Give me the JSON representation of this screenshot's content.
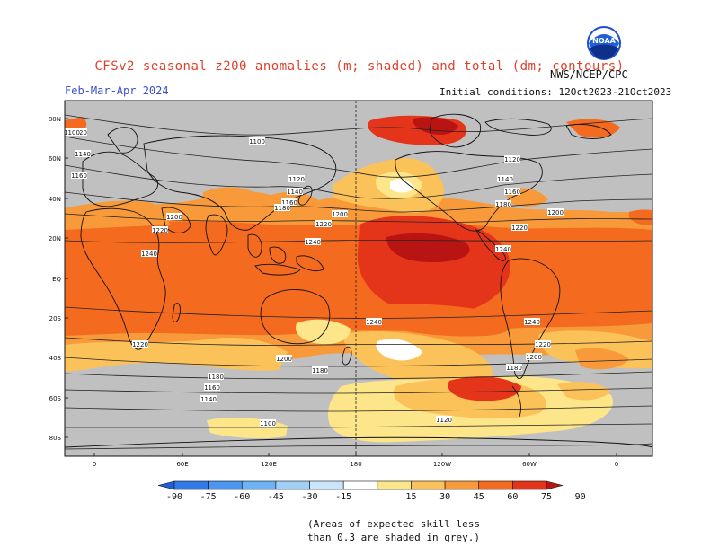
{
  "header": {
    "title": "CFSv2 seasonal z200 anomalies (m; shaded) and total (dm; contours)",
    "season": "Feb-Mar-Apr 2024",
    "initial_conditions": "Initial conditions: 12Oct2023-21Oct2023",
    "agency": "NWS/NCEP/CPC",
    "logo_text": "NOAA"
  },
  "axes": {
    "lat_labels": [
      "80N",
      "60N",
      "40N",
      "20N",
      "EQ",
      "20S",
      "40S",
      "60S",
      "80S"
    ],
    "lon_labels": [
      "0",
      "60E",
      "120E",
      "180",
      "120W",
      "60W",
      "0"
    ]
  },
  "colorbar": {
    "labels": [
      "-90",
      "-75",
      "-60",
      "-45",
      "-30",
      "-15",
      "15",
      "30",
      "45",
      "60",
      "75",
      "90"
    ],
    "colors": [
      "#1f5fd8",
      "#2f7ae8",
      "#4a96f0",
      "#6cb2f5",
      "#9fd1f8",
      "#c7e6fb",
      "#ffffff",
      "#fde58a",
      "#fcc25a",
      "#f99a3a",
      "#f46a1e",
      "#e4351a",
      "#b81414"
    ]
  },
  "contour_labels": [
    "1120",
    "1100",
    "1140",
    "1160",
    "1120",
    "1140",
    "1160",
    "1180",
    "1200",
    "1220",
    "1200",
    "1220",
    "1240",
    "1240",
    "1240",
    "1220",
    "1200",
    "1160",
    "1180",
    "1140",
    "1120",
    "1100",
    "1240",
    "1220",
    "1180",
    "1180",
    "1200",
    "1240",
    "1220",
    "1200",
    "1180",
    "1160",
    "1140",
    "1120",
    "1100"
  ],
  "note": {
    "line1": "(Areas of expected skill less",
    "line2": "than 0.3 are shaded in grey.)"
  },
  "colors": {
    "grey_mask": "#c0c0c0",
    "contour": "#222222",
    "coast": "#111111"
  }
}
